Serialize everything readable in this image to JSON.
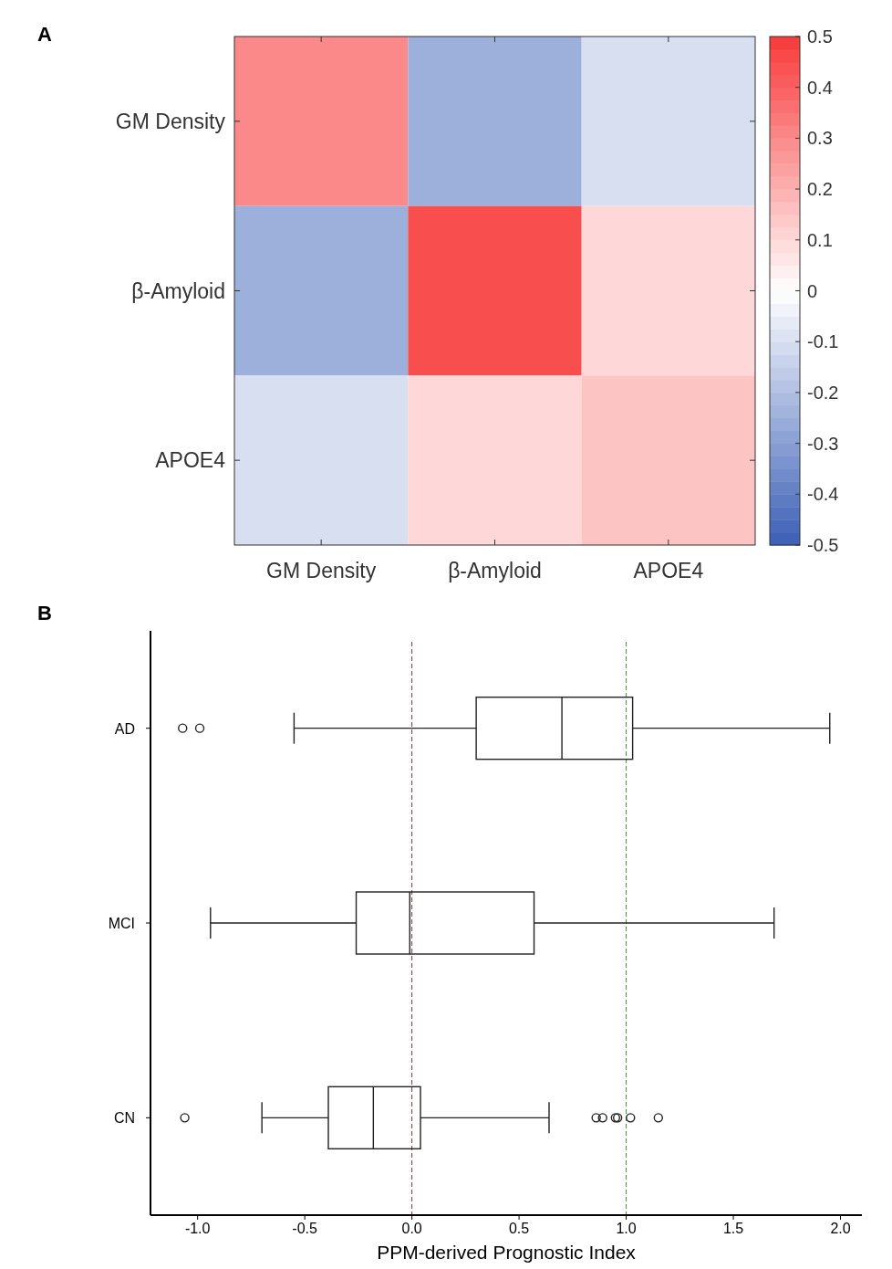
{
  "chart_data": [
    {
      "type": "heatmap",
      "title": "A",
      "categories": [
        "GM Density",
        "β-Amyloid",
        "APOE4"
      ],
      "y_categories": [
        "GM Density",
        "β-Amyloid",
        "APOE4"
      ],
      "cells": [
        [
          0.3,
          -0.25,
          -0.1
        ],
        [
          -0.25,
          0.45,
          0.1
        ],
        [
          -0.1,
          0.1,
          0.15
        ]
      ],
      "clim": [
        -0.5,
        0.5
      ],
      "cticks": [
        0.5,
        0.4,
        0.3,
        0.2,
        0.1,
        0,
        -0.1,
        -0.2,
        -0.3,
        -0.4,
        -0.5
      ]
    },
    {
      "type": "box",
      "title": "B",
      "orientation": "horizontal",
      "categories": [
        "AD",
        "MCI",
        "CN"
      ],
      "xlabel": "PPM-derived Prognostic Index",
      "boxes": [
        {
          "low": -0.55,
          "q1": 0.3,
          "median": 0.7,
          "q3": 1.03,
          "high": 1.95,
          "outliers": [
            -1.07,
            -0.99
          ]
        },
        {
          "low": -0.94,
          "q1": -0.26,
          "median": -0.01,
          "q3": 0.57,
          "high": 1.69
        },
        {
          "low": -0.7,
          "q1": -0.39,
          "median": -0.18,
          "q3": 0.04,
          "high": 0.64,
          "outliers": [
            -1.06,
            0.86,
            0.89,
            0.95,
            0.96,
            1.02,
            1.15
          ]
        }
      ],
      "xlim": [
        -1.22,
        2.1
      ],
      "xticks": [
        {
          "value": -1,
          "label": "-1.0"
        },
        {
          "value": -0.5,
          "label": "-0.5"
        },
        {
          "value": 0,
          "label": "0.0"
        },
        {
          "value": 0.5,
          "label": "0.5"
        },
        {
          "value": 1,
          "label": "1.0"
        },
        {
          "value": 1.5,
          "label": "1.5"
        },
        {
          "value": 2,
          "label": "2.0"
        }
      ],
      "ref_lines": [
        {
          "axis": "x",
          "value": 0,
          "color": "#8b2a2a",
          "line_style": "dashed"
        },
        {
          "axis": "x",
          "value": 1,
          "color": "#2a9a2a",
          "line_style": "dashed"
        }
      ]
    }
  ]
}
